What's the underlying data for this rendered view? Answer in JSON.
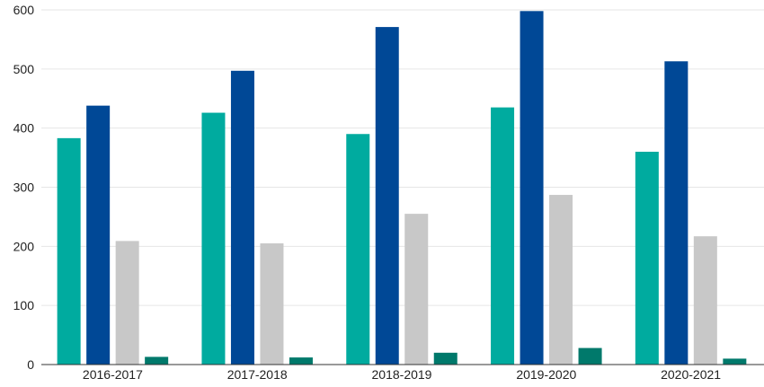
{
  "chart_data": {
    "type": "bar",
    "title": "",
    "xlabel": "",
    "ylabel": "",
    "categories": [
      "2016-2017",
      "2017-2018",
      "2018-2019",
      "2019-2020",
      "2020-2021"
    ],
    "series": [
      {
        "color": "#00ab9f",
        "values": [
          383,
          426,
          390,
          435,
          360
        ]
      },
      {
        "color": "#004896",
        "values": [
          438,
          497,
          571,
          598,
          513
        ]
      },
      {
        "color": "#c8c8c8",
        "values": [
          209,
          205,
          255,
          287,
          217
        ]
      },
      {
        "color": "#00796b",
        "values": [
          13,
          12,
          20,
          28,
          10
        ]
      }
    ],
    "ylim": [
      0,
      600
    ],
    "yticks": [
      "0",
      "100",
      "200",
      "300",
      "400",
      "500",
      "600"
    ],
    "grid": true,
    "legend": "none"
  }
}
